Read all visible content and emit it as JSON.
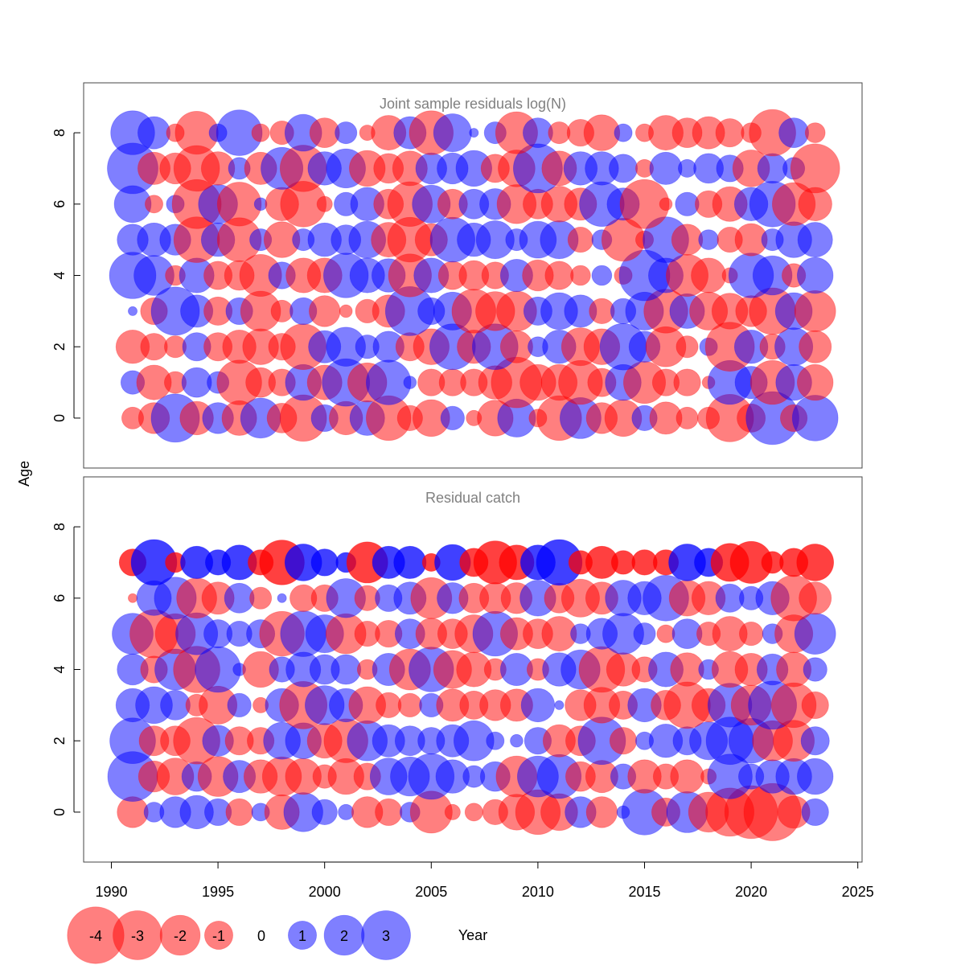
{
  "chart_data": {
    "type": "bubble",
    "ylabel": "Age",
    "xlabel": "Year",
    "x_ticks": [
      1990,
      1995,
      2000,
      2005,
      2010,
      2015,
      2020,
      2025
    ],
    "y_ticks": [
      0,
      2,
      4,
      6,
      8
    ],
    "xlim": [
      1988.7,
      2025.2
    ],
    "ylim": [
      -1.4,
      9.4
    ],
    "years": [
      1991,
      1992,
      1993,
      1994,
      1995,
      1996,
      1997,
      1998,
      1999,
      2000,
      2001,
      2002,
      2003,
      2004,
      2005,
      2006,
      2007,
      2008,
      2009,
      2010,
      2011,
      2012,
      2013,
      2014,
      2015,
      2016,
      2017,
      2018,
      2019,
      2020,
      2021,
      2022,
      2023
    ],
    "colors": {
      "positive": "#0000ff",
      "negative": "#ff0000"
    },
    "legend": {
      "values": [
        -4,
        -3,
        -2,
        -1,
        0,
        1,
        2,
        3
      ],
      "labels": [
        "-4",
        "-3",
        "-2",
        "-1",
        "0",
        "1",
        "2",
        "3"
      ]
    },
    "panels": [
      {
        "title": "Joint sample residuals log(N)",
        "opacity": 0.5,
        "ages": [
          0,
          1,
          2,
          3,
          4,
          5,
          6,
          7,
          8
        ],
        "residuals": [
          [
            -0.6,
            -1.2,
            2.9,
            -1.4,
            1.2,
            -1.5,
            2.0,
            -1.1,
            -2.7,
            0.9,
            -1.4,
            1.5,
            -2.5,
            -0.8,
            -1.7,
            0.7,
            -0.3,
            -1.6,
            1.8,
            -0.4,
            -2.5,
            2.1,
            -1.2,
            -1.7,
            0.8,
            -1.3,
            -0.6,
            -0.6,
            -2.8,
            -1.0,
            3.5,
            -0.9,
            2.6
          ],
          [
            0.7,
            -1.5,
            -0.6,
            1.1,
            0.6,
            -2.5,
            -1.1,
            -0.9,
            1.6,
            -1.5,
            2.8,
            -1.9,
            2.5,
            0.2,
            -0.9,
            -0.9,
            -0.9,
            -1.4,
            -3.2,
            -1.6,
            -1.6,
            -2.4,
            -1.0,
            1.6,
            -2.2,
            -0.9,
            -0.9,
            -0.2,
            2.4,
            1.3,
            -2.4,
            1.6,
            -1.6
          ],
          [
            -1.4,
            -0.9,
            -0.6,
            1.0,
            -1.0,
            -1.4,
            -1.6,
            -0.9,
            -2.6,
            1.3,
            1.9,
            0.7,
            1.2,
            -1.0,
            -1.6,
            2.6,
            -1.4,
            2.6,
            -1.3,
            0.5,
            1.4,
            -1.8,
            -1.6,
            2.7,
            1.2,
            -2.0,
            -0.6,
            0.4,
            -3.0,
            1.4,
            -0.8,
            1.8,
            -1.3
          ],
          [
            0.1,
            -0.9,
            2.9,
            1.3,
            -1.0,
            0.9,
            -2.0,
            -0.6,
            0.9,
            -1.2,
            -0.2,
            -0.7,
            -1.3,
            3.0,
            0.9,
            1.8,
            -2.4,
            -1.9,
            -2.0,
            1.0,
            1.7,
            1.3,
            -0.8,
            0.8,
            1.8,
            -2.4,
            1.5,
            -1.8,
            -1.6,
            -1.2,
            -2.7,
            1.7,
            -2.1
          ],
          [
            2.7,
            2.0,
            -0.5,
            1.5,
            -1.0,
            -1.1,
            -2.2,
            0.9,
            -1.5,
            -1.5,
            2.5,
            1.5,
            1.4,
            -2.3,
            1.5,
            -1.0,
            -1.1,
            -0.9,
            1.3,
            -1.2,
            -1.0,
            -0.5,
            0.5,
            -0.4,
            3.2,
            1.5,
            -2.2,
            -1.5,
            -0.3,
            2.5,
            1.9,
            -0.7,
            1.6
          ],
          [
            1.2,
            1.4,
            1.2,
            -2.6,
            1.4,
            -2.4,
            0.6,
            -1.6,
            0.6,
            1.4,
            1.1,
            1.7,
            -1.5,
            -2.5,
            -1.3,
            2.5,
            1.4,
            1.8,
            0.6,
            1.7,
            1.8,
            -0.8,
            0.5,
            -2.3,
            -0.4,
            2.6,
            -1.2,
            0.5,
            -0.8,
            -1.3,
            0.6,
            1.6,
            1.5
          ],
          [
            1.7,
            -0.4,
            0.4,
            -3.0,
            1.9,
            -2.4,
            0.2,
            -1.4,
            -2.6,
            -0.3,
            0.7,
            1.4,
            -1.1,
            -2.5,
            1.8,
            -1.1,
            1.1,
            1.2,
            -1.9,
            -1.1,
            -1.6,
            -1.3,
            2.5,
            1.3,
            -3.0,
            -0.2,
            0.7,
            -0.9,
            -1.5,
            1.4,
            2.6,
            -2.3,
            -1.4
          ],
          [
            3.2,
            -1.3,
            -1.2,
            -2.6,
            -1.4,
            0.6,
            -1.3,
            2.2,
            -2.7,
            1.4,
            1.9,
            -1.6,
            -1.1,
            -1.5,
            1.2,
            1.2,
            1.6,
            -1.0,
            -1.7,
            3.0,
            -1.5,
            1.4,
            1.4,
            1.0,
            -0.4,
            1.3,
            0.4,
            1.1,
            0.9,
            -1.7,
            1.1,
            0.6,
            -3.0
          ],
          [
            2.4,
            1.3,
            -0.4,
            -2.3,
            0.4,
            2.6,
            -0.4,
            -0.7,
            1.7,
            -1.1,
            0.6,
            -0.3,
            -1.5,
            1.3,
            -2.4,
            1.8,
            0.1,
            0.6,
            -2.2,
            1.1,
            -0.6,
            -0.9,
            -1.6,
            0.4,
            -0.4,
            -1.5,
            -1.1,
            -1.3,
            -1.0,
            -0.5,
            -2.7,
            1.1,
            -0.5
          ]
        ]
      },
      {
        "title": "Residual catch",
        "opacity": 0.5,
        "opacity_top_row": 0.75,
        "ages": [
          0,
          1,
          2,
          3,
          4,
          5,
          6,
          7
        ],
        "residuals": [
          [
            -1.2,
            0.5,
            1.2,
            1.4,
            0.9,
            -0.9,
            0.4,
            -1.5,
            1.9,
            0.8,
            0.3,
            -1.2,
            -0.9,
            0.5,
            -2.2,
            -0.3,
            -0.4,
            -0.8,
            -1.6,
            -2.5,
            -1.7,
            1.2,
            -1.2,
            0.2,
            2.6,
            -1.0,
            2.1,
            -2.0,
            -2.9,
            -3.5,
            -4.1,
            -1.3,
            0.9
          ],
          [
            3.1,
            -1.2,
            -1.7,
            1.1,
            -2.0,
            1.3,
            -1.4,
            -1.9,
            -1.6,
            -0.7,
            -1.6,
            -0.9,
            1.7,
            1.9,
            2.6,
            1.4,
            0.6,
            1.1,
            -2.1,
            2.1,
            2.4,
            -1.1,
            -1.3,
            0.8,
            -1.4,
            -0.8,
            -1.4,
            -0.3,
            2.5,
            0.8,
            1.4,
            1.6,
            1.6
          ],
          [
            2.6,
            -1.1,
            -1.1,
            -2.7,
            1.2,
            -1.0,
            -0.9,
            1.7,
            1.6,
            -1.5,
            -2.4,
            2.0,
            1.3,
            1.1,
            0.9,
            1.3,
            2.0,
            0.4,
            0.2,
            0.9,
            -1.3,
            -1.1,
            2.8,
            -0.9,
            0.4,
            1.4,
            1.0,
            1.8,
            2.8,
            2.5,
            -2.0,
            -2.1,
            1.0
          ],
          [
            1.4,
            1.7,
            1.1,
            -0.6,
            -1.8,
            0.7,
            -0.3,
            1.4,
            -2.8,
            1.9,
            1.4,
            -1.7,
            -0.8,
            -0.7,
            0.7,
            -1.3,
            -1.0,
            -1.2,
            -1.3,
            1.4,
            0.1,
            -1.2,
            -1.6,
            -1.0,
            1.4,
            -1.1,
            -2.7,
            -1.4,
            2.4,
            -2.0,
            2.9,
            -2.5,
            -0.9
          ],
          [
            1.2,
            -0.9,
            2.1,
            -2.7,
            2.6,
            0.2,
            -1.6,
            0.8,
            1.5,
            1.1,
            1.1,
            -0.5,
            1.3,
            -2.1,
            2.5,
            -1.8,
            -1.5,
            -0.6,
            1.3,
            -0.6,
            1.4,
            1.9,
            -2.6,
            -1.4,
            -0.8,
            1.5,
            -1.4,
            0.5,
            -1.6,
            -1.3,
            1.2,
            -1.5,
            0.7
          ],
          [
            2.1,
            -2.9,
            -2.0,
            2.2,
            1.0,
            0.8,
            1.0,
            -2.5,
            2.6,
            1.8,
            -2.0,
            -0.8,
            -0.9,
            1.1,
            -1.2,
            -1.1,
            -1.8,
            2.5,
            -1.3,
            -1.1,
            -1.5,
            0.5,
            1.2,
            2.1,
            0.6,
            -0.4,
            1.1,
            -0.7,
            -1.5,
            -0.7,
            0.5,
            -1.8,
            2.1
          ],
          [
            -0.1,
            1.5,
            2.2,
            -2.0,
            -1.3,
            1.1,
            -0.6,
            0.1,
            -0.9,
            -0.9,
            1.9,
            -0.8,
            0.9,
            1.3,
            -2.1,
            1.2,
            -1.1,
            -1.2,
            -1.2,
            1.6,
            -1.1,
            -1.8,
            -1.3,
            1.6,
            1.4,
            2.6,
            -1.6,
            -1.4,
            1.0,
            0.7,
            1.4,
            -2.6,
            -1.3
          ],
          [
            -0.9,
            2.6,
            -0.5,
            1.3,
            0.8,
            1.5,
            -0.8,
            -2.5,
            1.7,
            0.9,
            0.5,
            -2.1,
            1.3,
            1.3,
            -0.4,
            1.6,
            -1.0,
            -2.3,
            -1.5,
            1.5,
            2.6,
            -0.7,
            -1.3,
            -0.7,
            -0.8,
            -0.8,
            1.7,
            1.0,
            -1.8,
            -2.2,
            -0.6,
            -1.0,
            -1.7
          ]
        ]
      }
    ]
  }
}
